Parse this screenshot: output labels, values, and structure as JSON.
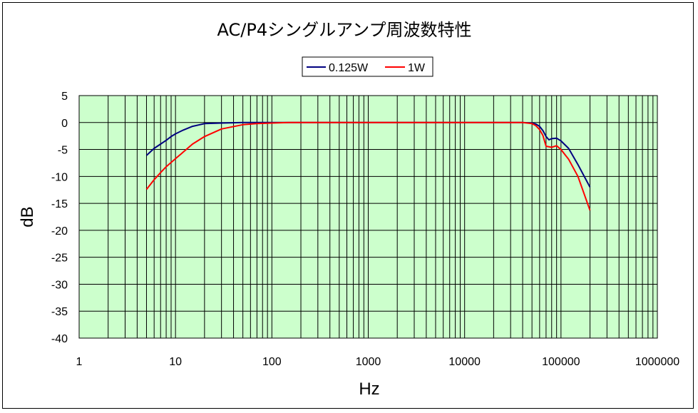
{
  "chart_data": {
    "type": "line",
    "title": "AC/P4シングルアンプ周波数特性",
    "xlabel": "Hz",
    "ylabel": "dB",
    "xscale": "log",
    "xlim": [
      1,
      1000000
    ],
    "ylim": [
      -40,
      5
    ],
    "xticks": [
      1,
      10,
      100,
      1000,
      10000,
      100000,
      1000000
    ],
    "xtick_labels": [
      "1",
      "10",
      "100",
      "1000",
      "10000",
      "100000",
      "1000000"
    ],
    "yticks": [
      5,
      0,
      -5,
      -10,
      -15,
      -20,
      -25,
      -30,
      -35,
      -40
    ],
    "ytick_labels": [
      "5",
      "0",
      "-5",
      "-10",
      "-15",
      "-20",
      "-25",
      "-30",
      "-35",
      "-40"
    ],
    "grid": true,
    "plot_background": "#ccffcc",
    "legend_position": "top-center",
    "series": [
      {
        "name": "0.125W",
        "color": "#000080",
        "x": [
          5,
          6,
          7,
          8,
          9,
          10,
          12,
          15,
          20,
          30,
          50,
          100,
          150,
          1000,
          10000,
          40000,
          50000,
          55000,
          60000,
          65000,
          70000,
          75000,
          80000,
          90000,
          100000,
          120000,
          150000,
          200000
        ],
        "y": [
          -6.1,
          -4.8,
          -4.0,
          -3.3,
          -2.6,
          -2.1,
          -1.4,
          -0.7,
          -0.2,
          -0.1,
          0,
          0,
          0,
          0,
          0,
          0,
          -0.1,
          -0.3,
          -0.7,
          -1.5,
          -2.6,
          -3.2,
          -3.0,
          -2.9,
          -3.4,
          -4.8,
          -7.8,
          -12.0
        ]
      },
      {
        "name": "1W",
        "color": "#ff0000",
        "x": [
          5,
          6,
          7,
          8,
          10,
          12,
          15,
          20,
          30,
          50,
          70,
          100,
          150,
          1000,
          10000,
          40000,
          50000,
          55000,
          60000,
          65000,
          70000,
          80000,
          90000,
          100000,
          120000,
          150000,
          200000
        ],
        "y": [
          -12.4,
          -10.6,
          -9.3,
          -8.2,
          -6.7,
          -5.5,
          -4.0,
          -2.6,
          -1.2,
          -0.4,
          -0.2,
          -0.1,
          0,
          0,
          0,
          0,
          -0.2,
          -0.6,
          -1.3,
          -2.4,
          -4.4,
          -4.6,
          -4.3,
          -5.0,
          -6.8,
          -10.0,
          -16.3
        ]
      }
    ]
  }
}
